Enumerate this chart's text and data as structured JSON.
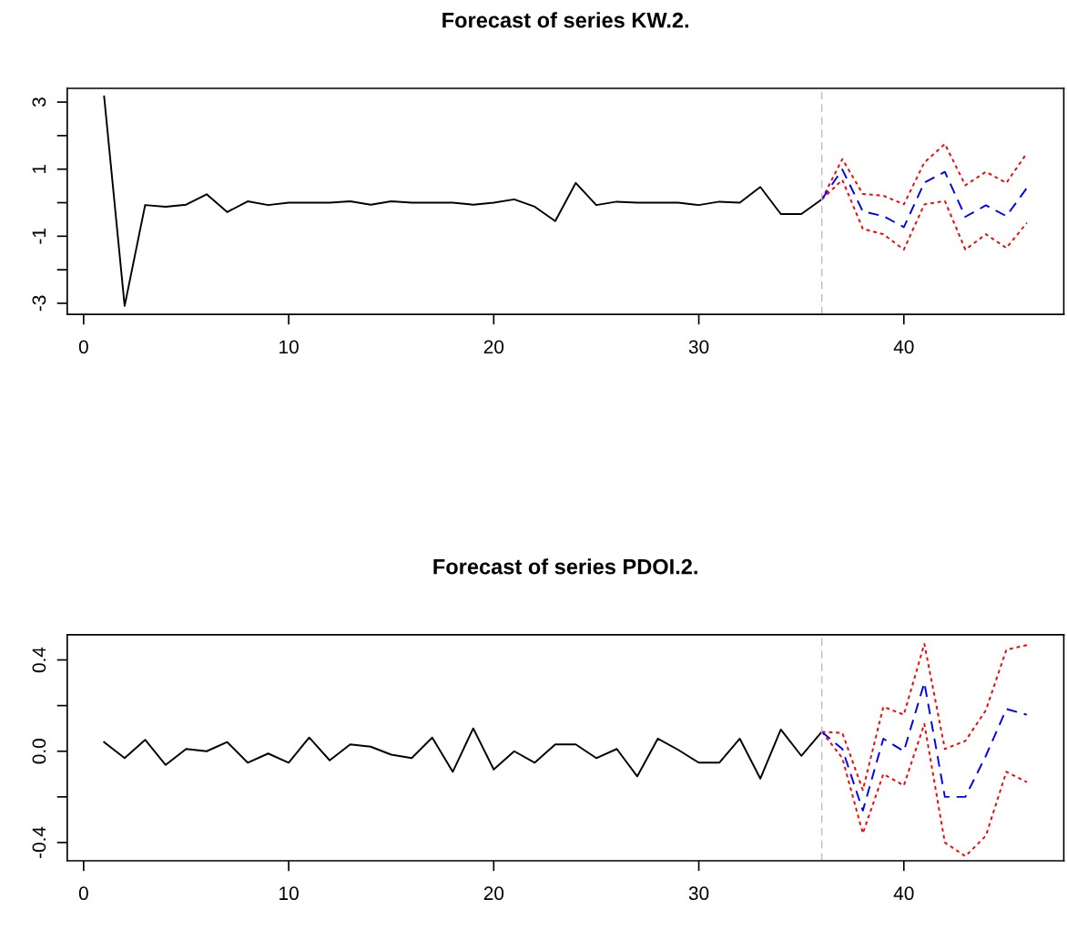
{
  "chart_data": [
    {
      "type": "line",
      "title": "Forecast of series KW.2.",
      "xlim": [
        -0.8,
        47.8
      ],
      "xticks": [
        0,
        10,
        20,
        30,
        40
      ],
      "ylim": [
        -3.33,
        3.41
      ],
      "yticks": [
        -3,
        {
          "value": -2,
          "label": null
        },
        -1,
        {
          "value": 0,
          "label": null
        },
        1,
        {
          "value": 2,
          "label": null
        },
        3
      ],
      "grid": false,
      "ref_lines": [
        {
          "axis": "x",
          "value": 36,
          "color": "#bebebe",
          "line_style": "dashed"
        }
      ],
      "series": [
        {
          "color": "#000000",
          "line_style": "solid",
          "x": [
            1,
            2,
            3,
            4,
            5,
            6,
            7,
            8,
            9,
            10,
            11,
            12,
            13,
            14,
            15,
            16,
            17,
            18,
            19,
            20,
            21,
            22,
            23,
            24,
            25,
            26,
            27,
            28,
            29,
            30,
            31,
            32,
            33,
            34,
            35,
            36
          ],
          "values": [
            3.17,
            -3.08,
            -0.07,
            -0.12,
            -0.06,
            0.25,
            -0.28,
            0.04,
            -0.07,
            0,
            0,
            0,
            0.04,
            -0.06,
            0.04,
            0,
            0,
            0,
            -0.06,
            0,
            0.1,
            -0.12,
            -0.55,
            0.59,
            -0.07,
            0.03,
            0,
            0,
            0,
            -0.07,
            0.03,
            0,
            0.47,
            -0.34,
            -0.34,
            0.1
          ]
        },
        {
          "color": "#ff0000",
          "line_style": "dotted",
          "x": [
            36,
            37,
            38,
            39,
            40,
            41,
            42,
            43,
            44,
            45,
            46
          ],
          "values": [
            0.1,
            1.3,
            0.26,
            0.21,
            -0.05,
            1.2,
            1.75,
            0.52,
            0.92,
            0.59,
            1.48
          ]
        },
        {
          "color": "#ff0000",
          "line_style": "dotted",
          "x": [
            36,
            37,
            38,
            39,
            40,
            41,
            42,
            43,
            44,
            45,
            46
          ],
          "values": [
            0.1,
            0.68,
            -0.78,
            -0.94,
            -1.4,
            -0.05,
            0.05,
            -1.4,
            -0.94,
            -1.35,
            -0.6
          ]
        },
        {
          "color": "#0000ff",
          "line_style": "dashed",
          "x": [
            36,
            37,
            38,
            39,
            40,
            41,
            42,
            43,
            44,
            45,
            46
          ],
          "values": [
            0.1,
            0.99,
            -0.26,
            -0.4,
            -0.73,
            0.6,
            0.92,
            -0.42,
            -0.08,
            -0.4,
            0.44
          ]
        }
      ]
    },
    {
      "type": "line",
      "title": "Forecast of series PDOI.2.",
      "xlim": [
        -0.8,
        47.8
      ],
      "xticks": [
        0,
        10,
        20,
        30,
        40
      ],
      "ylim": [
        -0.48,
        0.51
      ],
      "yticks": [
        -0.4,
        {
          "value": -0.2,
          "label": null
        },
        {
          "value": 0,
          "label": "0.0"
        },
        {
          "value": 0.2,
          "label": null
        },
        0.4
      ],
      "grid": false,
      "ref_lines": [
        {
          "axis": "x",
          "value": 36,
          "color": "#bebebe",
          "line_style": "dashed"
        }
      ],
      "series": [
        {
          "color": "#000000",
          "line_style": "solid",
          "x": [
            1,
            2,
            3,
            4,
            5,
            6,
            7,
            8,
            9,
            10,
            11,
            12,
            13,
            14,
            15,
            16,
            17,
            18,
            19,
            20,
            21,
            22,
            23,
            24,
            25,
            26,
            27,
            28,
            29,
            30,
            31,
            32,
            33,
            34,
            35,
            36
          ],
          "values": [
            0.04,
            -0.03,
            0.05,
            -0.06,
            0.01,
            0,
            0.04,
            -0.05,
            -0.01,
            -0.05,
            0.06,
            -0.04,
            0.03,
            0.02,
            -0.015,
            -0.03,
            0.06,
            -0.09,
            0.1,
            -0.08,
            0,
            -0.05,
            0.03,
            0.03,
            -0.03,
            0.01,
            -0.11,
            0.055,
            0.006,
            -0.05,
            -0.05,
            0.055,
            -0.12,
            0.095,
            -0.02,
            0.085
          ]
        },
        {
          "color": "#ff0000",
          "line_style": "dotted",
          "x": [
            36,
            37,
            38,
            39,
            40,
            41,
            42,
            43,
            44,
            45,
            46
          ],
          "values": [
            0.085,
            0.08,
            -0.17,
            0.195,
            0.16,
            0.47,
            0.01,
            0.045,
            0.18,
            0.445,
            0.465
          ]
        },
        {
          "color": "#ff0000",
          "line_style": "dotted",
          "x": [
            36,
            37,
            38,
            39,
            40,
            41,
            42,
            43,
            44,
            45,
            46
          ],
          "values": [
            0.085,
            -0.03,
            -0.36,
            -0.1,
            -0.15,
            0.12,
            -0.4,
            -0.46,
            -0.37,
            -0.09,
            -0.135
          ]
        },
        {
          "color": "#0000ff",
          "line_style": "dashed",
          "x": [
            36,
            37,
            38,
            39,
            40,
            41,
            42,
            43,
            44,
            45,
            46
          ],
          "values": [
            0.085,
            0.01,
            -0.26,
            0.055,
            0,
            0.3,
            -0.2,
            -0.2,
            -0.02,
            0.185,
            0.16
          ]
        }
      ]
    }
  ]
}
